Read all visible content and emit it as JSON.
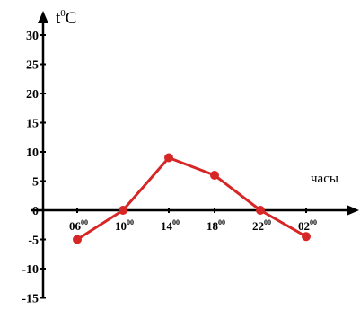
{
  "chart_data": {
    "type": "line",
    "ylabel": "t",
    "ylabel_sup": "0",
    "ylabel_unit": "C",
    "xlabel": "часы",
    "ylim": [
      -15,
      30
    ],
    "yticks": [
      30,
      25,
      20,
      15,
      10,
      5,
      0,
      -5,
      -10,
      -15
    ],
    "xticks": [
      {
        "hour": "06",
        "min": "00"
      },
      {
        "hour": "10",
        "min": "00"
      },
      {
        "hour": "14",
        "min": "00"
      },
      {
        "hour": "18",
        "min": "00"
      },
      {
        "hour": "22",
        "min": "00"
      },
      {
        "hour": "02",
        "min": "00"
      }
    ],
    "series": [
      {
        "x": [
          "06:00",
          "10:00",
          "14:00",
          "18:00",
          "22:00",
          "02:00"
        ],
        "values": [
          -5,
          0,
          9,
          6,
          0,
          -4.5
        ]
      }
    ],
    "line_color": "#d62626",
    "axis_color": "#000000",
    "grid": false
  }
}
